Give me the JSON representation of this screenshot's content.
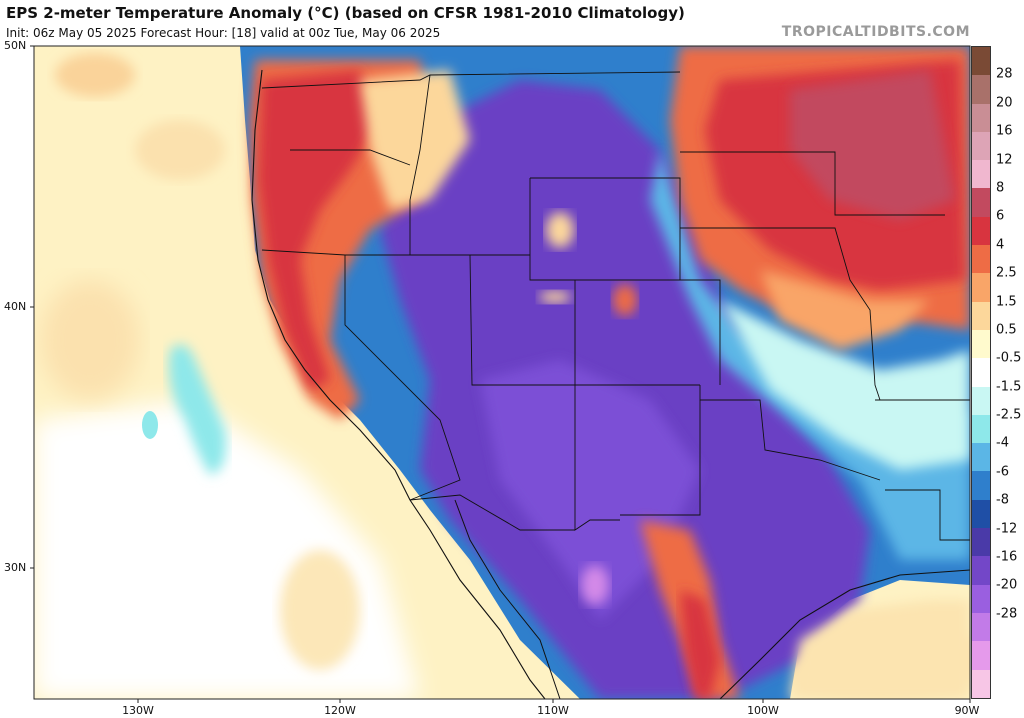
{
  "header": {
    "title": "EPS 2-meter Temperature Anomaly (°C) (based on CFSR 1981-2010 Climatology)",
    "subtitle": "Init: 06z May 05 2025   Forecast Hour: [18]   valid at 00z Tue, May 06 2025",
    "brand": "TROPICALTIDBITS.COM"
  },
  "axes": {
    "lat_labels": [
      "50N",
      "40N",
      "30N"
    ],
    "lon_labels": [
      "130W",
      "120W",
      "110W",
      "100W",
      "90W"
    ]
  },
  "colorbar": {
    "labels": [
      "28",
      "20",
      "16",
      "12",
      "8",
      "6",
      "4",
      "2.5",
      "1.5",
      "0.5",
      "-0.5",
      "-1.5",
      "-2.5",
      "-4",
      "-6",
      "-8",
      "-12",
      "-16",
      "-20",
      "-28"
    ],
    "colors": [
      "#7a4a35",
      "#a9716a",
      "#c98e95",
      "#dda4b6",
      "#f0b7cf",
      "#c24a5f",
      "#d8343f",
      "#ee6c45",
      "#f9a568",
      "#fcd79b",
      "#fffacd",
      "#ffffff",
      "#c9f7f3",
      "#8ee8ea",
      "#5bb6e6",
      "#2f7fcc",
      "#1f4fa6",
      "#4a3aa8",
      "#7347c8",
      "#9a5fe0",
      "#c27be8",
      "#e59aeb",
      "#f7c6e6"
    ]
  },
  "map": {
    "colors": {
      "ocean_pale": "#fef2c4",
      "ocean_warm": "#fad39a",
      "cold_deep": "#6a40c4",
      "cold_mid": "#2f7fcc",
      "warm_red": "#d8343f",
      "warm_orange": "#ee6c45",
      "cyan": "#8ee8ea"
    }
  }
}
